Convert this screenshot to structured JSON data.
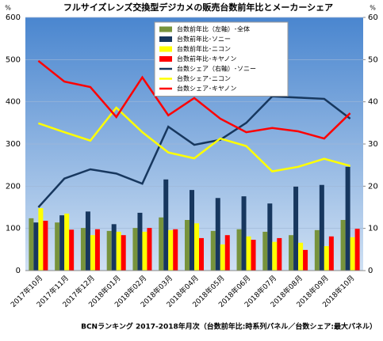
{
  "chart_data": {
    "type": "combo",
    "title": "フルサイズレンズ交換型デジカメの販売台数前年比とメーカーシェア",
    "y_label": "%",
    "y2_label": "%",
    "source": "BCNランキング 2017-2018年月次（台数前年比:時系列パネル／台数シェア:最大パネル）",
    "categories": [
      "2017年10月",
      "2017年11月",
      "2017年12月",
      "2018年01月",
      "2018年02月",
      "2018年03月",
      "2018年04月",
      "2018年05月",
      "2018年06月",
      "2018年07月",
      "2018年08月",
      "2018年09月",
      "2018年10月"
    ],
    "ylim": [
      0,
      600
    ],
    "yticks": [
      0,
      100,
      200,
      300,
      400,
      500,
      600
    ],
    "y2lim": [
      0,
      60
    ],
    "y2ticks": [
      0,
      10,
      20,
      30,
      40,
      50,
      60
    ],
    "grid": true,
    "series": [
      {
        "name": "台数前年比（左軸）･全体",
        "type": "bar",
        "color": "#77933c",
        "values": [
          124,
          114,
          101,
          94,
          101,
          126,
          120,
          94,
          98,
          92,
          84,
          96,
          120
        ]
      },
      {
        "name": "台数前年比･ソニー",
        "type": "bar",
        "color": "#17375e",
        "values": [
          114,
          131,
          140,
          110,
          137,
          216,
          191,
          172,
          176,
          159,
          199,
          203,
          246
        ]
      },
      {
        "name": "台数前年比･ニコン",
        "type": "bar",
        "color": "#ffff00",
        "values": [
          148,
          135,
          84,
          92,
          92,
          96,
          112,
          62,
          81,
          68,
          66,
          58,
          79
        ]
      },
      {
        "name": "台数前年比･キヤノン",
        "type": "bar",
        "color": "#ff0000",
        "values": [
          118,
          97,
          98,
          84,
          101,
          98,
          77,
          84,
          73,
          77,
          49,
          81,
          99
        ]
      },
      {
        "name": "台数シェア（右軸）･ソニー",
        "type": "line",
        "axis": "y2",
        "color": "#17375e",
        "values": [
          15,
          21.8,
          24,
          23,
          20.6,
          34.1,
          29.8,
          31,
          35,
          41.3,
          41,
          40.7,
          36
        ]
      },
      {
        "name": "台数シェア･ニコン",
        "type": "line",
        "axis": "y2",
        "color": "#ffff00",
        "values": [
          34.9,
          32.8,
          30.8,
          38.6,
          32.8,
          28,
          26.6,
          31.3,
          29.5,
          23.5,
          24.6,
          26.5,
          24.8
        ]
      },
      {
        "name": "台数シェア･キヤノン",
        "type": "line",
        "axis": "y2",
        "color": "#ff0000",
        "values": [
          49.7,
          44.8,
          43.5,
          36.4,
          45.8,
          36.8,
          40.9,
          36,
          32.8,
          33.8,
          33,
          31.3,
          37.3
        ]
      }
    ]
  }
}
